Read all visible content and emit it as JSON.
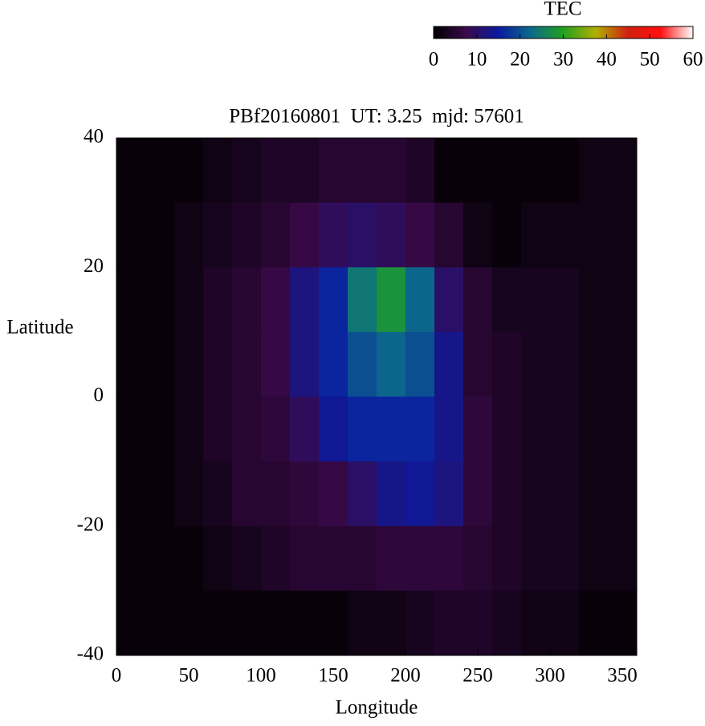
{
  "chart_data": {
    "type": "heatmap",
    "title": "PBf20160801  UT: 3.25  mjd: 57601",
    "x_label": "Longitude",
    "y_label": "Latitude",
    "xlim": [
      0,
      360
    ],
    "ylim": [
      -40,
      40
    ],
    "xticks": [
      0,
      50,
      100,
      150,
      200,
      250,
      300,
      350
    ],
    "yticks": [
      -40,
      -20,
      0,
      20,
      40
    ],
    "x": [
      10,
      30,
      50,
      70,
      90,
      110,
      130,
      150,
      170,
      190,
      210,
      230,
      250,
      270,
      290,
      310,
      330,
      350
    ],
    "y": [
      35,
      25,
      15,
      5,
      -5,
      -15,
      -25,
      -35
    ],
    "z": [
      [
        1,
        1,
        1,
        2,
        3,
        4,
        4,
        5,
        5,
        5,
        4,
        1,
        1,
        1,
        1,
        1,
        2,
        2
      ],
      [
        1,
        1,
        2,
        3,
        4,
        5,
        7,
        9,
        10,
        9,
        7,
        5,
        2,
        1,
        2,
        2,
        2,
        2
      ],
      [
        1,
        1,
        2,
        4,
        5,
        7,
        12,
        16,
        24,
        28,
        22,
        10,
        5,
        3,
        3,
        3,
        2,
        2
      ],
      [
        1,
        1,
        2,
        4,
        5,
        7,
        12,
        16,
        20,
        22,
        20,
        13,
        5,
        4,
        3,
        3,
        2,
        2
      ],
      [
        1,
        1,
        2,
        4,
        5,
        6,
        9,
        14,
        16,
        16,
        16,
        13,
        6,
        4,
        3,
        3,
        2,
        2
      ],
      [
        1,
        1,
        2,
        3,
        5,
        5,
        6,
        7,
        10,
        13,
        14,
        12,
        6,
        4,
        3,
        3,
        2,
        2
      ],
      [
        1,
        1,
        1,
        2,
        3,
        4,
        5,
        5,
        5,
        6,
        6,
        6,
        5,
        4,
        3,
        3,
        2,
        2
      ],
      [
        1,
        1,
        1,
        1,
        1,
        1,
        1,
        1,
        2,
        2,
        3,
        4,
        4,
        3,
        2,
        2,
        1,
        1
      ]
    ],
    "colorbar": {
      "label": "TEC",
      "lim": [
        0,
        60
      ],
      "ticks": [
        0,
        10,
        20,
        30,
        40,
        50,
        60
      ],
      "colormap": [
        "#000000",
        "#3a0a4a",
        "#0a1aa0",
        "#0c6a8a",
        "#20a020",
        "#b0b000",
        "#d02010",
        "#ff1010",
        "#ffffff"
      ]
    }
  }
}
